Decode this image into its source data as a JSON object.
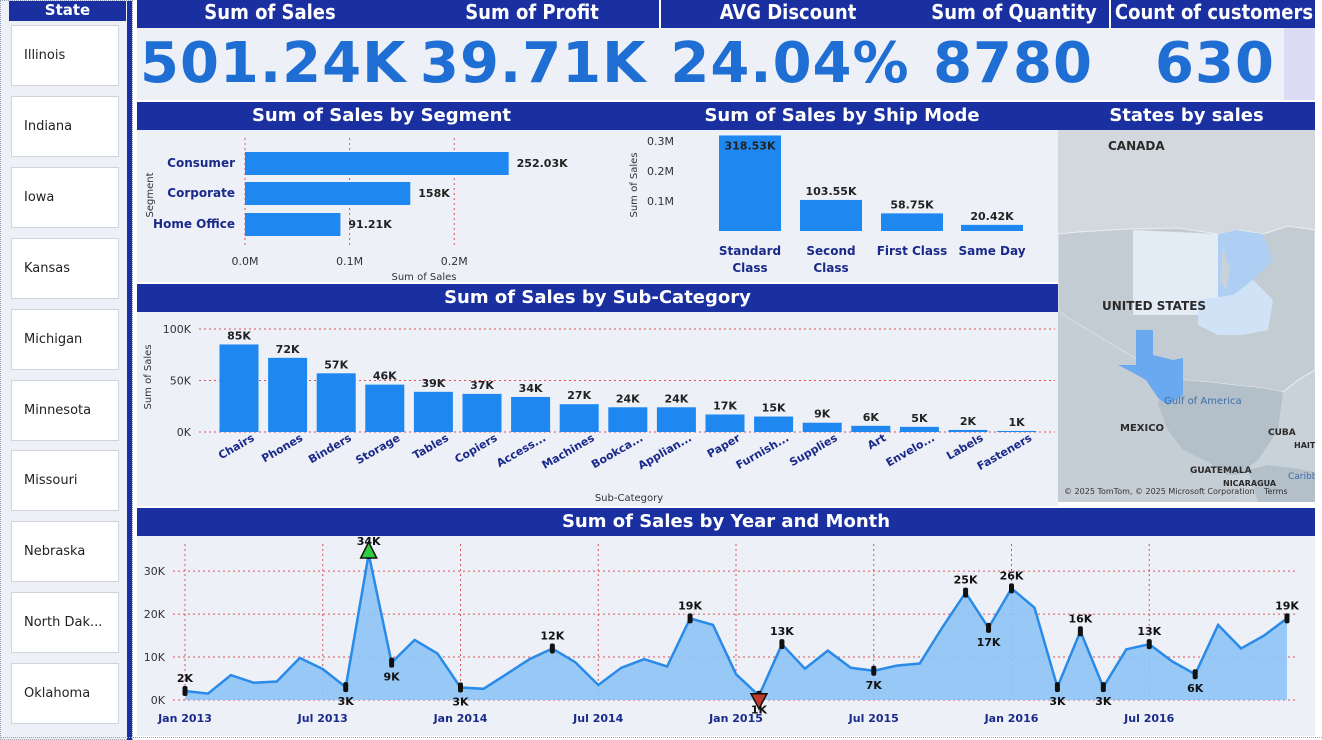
{
  "slicer": {
    "title": "State",
    "items": [
      "Illinois",
      "Indiana",
      "Iowa",
      "Kansas",
      "Michigan",
      "Minnesota",
      "Missouri",
      "Nebraska",
      "North Dak...",
      "Oklahoma"
    ]
  },
  "kpis": [
    {
      "label": "Sum of Sales",
      "value": "501.24K"
    },
    {
      "label": "Sum of Profit",
      "value": "39.71K"
    },
    {
      "label": "AVG Discount",
      "value": "24.04%"
    },
    {
      "label": "Sum of Quantity",
      "value": "8780"
    },
    {
      "label": "Count of customers",
      "value": "630"
    }
  ],
  "segment_chart": {
    "title": "Sum of Sales by Segment",
    "ylabel": "Segment",
    "xlabel": "Sum of Sales",
    "categories": [
      "Consumer",
      "Corporate",
      "Home Office"
    ],
    "values": [
      252.03,
      158,
      91.21
    ],
    "data_labels": [
      "252.03K",
      "158K",
      "91.21K"
    ],
    "ticks": [
      "0.0M",
      "0.1M",
      "0.2M"
    ],
    "tick_values": [
      0,
      100,
      200
    ],
    "xlim": [
      0,
      260
    ]
  },
  "shipmode_chart": {
    "title": "Sum of Sales by Ship Mode",
    "ylabel": "Sum of Sales",
    "categories": [
      [
        "Standard",
        "Class"
      ],
      [
        "Second",
        "Class"
      ],
      [
        "First Class"
      ],
      [
        "Same Day"
      ]
    ],
    "values": [
      318.53,
      103.55,
      58.75,
      20.42
    ],
    "data_labels": [
      "318.53K",
      "103.55K",
      "58.75K",
      "20.42K"
    ],
    "ticks": [
      "0.1M",
      "0.2M",
      "0.3M"
    ],
    "tick_values": [
      100,
      200,
      300
    ],
    "ylim": [
      0,
      330
    ]
  },
  "map": {
    "title": "States by sales",
    "labels": {
      "canada": "CANADA",
      "us": "UNITED STATES",
      "mexico": "MEXICO",
      "gulf": "Gulf of America",
      "cuba": "CUBA",
      "haiti": "HAITI",
      "guatemala": "GUATEMALA",
      "nicaragua": "NICARAGUA",
      "caribbean": "Caribb"
    },
    "attribution": "© 2025 TomTom, © 2025 Microsoft Corporation",
    "terms": "Terms"
  },
  "subcat_chart": {
    "title": "Sum of Sales by Sub-Category",
    "xlabel": "Sub-Category",
    "ylabel": "Sum of Sales",
    "categories": [
      "Chairs",
      "Phones",
      "Binders",
      "Storage",
      "Tables",
      "Copiers",
      "Access...",
      "Machines",
      "Bookca...",
      "Applian...",
      "Paper",
      "Furnish...",
      "Supplies",
      "Art",
      "Envelo...",
      "Labels",
      "Fasteners"
    ],
    "values": [
      85,
      72,
      57,
      46,
      39,
      37,
      34,
      27,
      24,
      24,
      17,
      15,
      9,
      6,
      5,
      2,
      1
    ],
    "data_labels": [
      "85K",
      "72K",
      "57K",
      "46K",
      "39K",
      "37K",
      "34K",
      "27K",
      "24K",
      "24K",
      "17K",
      "15K",
      "9K",
      "6K",
      "5K",
      "2K",
      "1K"
    ],
    "ticks": [
      "0K",
      "50K",
      "100K"
    ],
    "tick_values": [
      0,
      50,
      100
    ],
    "ylim": [
      0,
      100
    ]
  },
  "trend_chart": {
    "title": "Sum of Sales by Year and Month",
    "type": "area",
    "x_ticks": [
      "Jan 2013",
      "Jul 2013",
      "Jan 2014",
      "Jul 2014",
      "Jan 2015",
      "Jul 2015",
      "Jan 2016",
      "Jul 2016"
    ],
    "x_tick_index": [
      0,
      6,
      12,
      18,
      24,
      30,
      36,
      42
    ],
    "y_ticks": [
      "0K",
      "10K",
      "20K",
      "30K"
    ],
    "y_tick_values": [
      0,
      10,
      20,
      30
    ],
    "ylim": [
      0,
      34
    ],
    "values": [
      2.1,
      1.5,
      5.8,
      4.0,
      4.3,
      9.8,
      7.2,
      3.0,
      34.0,
      8.7,
      14.0,
      10.8,
      2.9,
      2.6,
      6.0,
      9.5,
      12.0,
      8.8,
      3.5,
      7.5,
      9.5,
      7.8,
      19.0,
      17.5,
      6.0,
      1.0,
      13.0,
      7.3,
      11.5,
      7.5,
      6.8,
      8.0,
      8.5,
      17.0,
      25.0,
      16.8,
      26.0,
      21.5,
      3.0,
      16.0,
      3.0,
      11.8,
      13.0,
      9.0,
      6.0,
      17.5,
      12.0,
      15.0,
      19.0
    ],
    "labels": [
      {
        "i": 0,
        "text": "2K"
      },
      {
        "i": 7,
        "text": "3K"
      },
      {
        "i": 8,
        "text": "34K"
      },
      {
        "i": 9,
        "text": "9K"
      },
      {
        "i": 12,
        "text": "3K"
      },
      {
        "i": 16,
        "text": "12K"
      },
      {
        "i": 22,
        "text": "19K"
      },
      {
        "i": 25,
        "text": "1K"
      },
      {
        "i": 26,
        "text": "13K"
      },
      {
        "i": 30,
        "text": "7K"
      },
      {
        "i": 34,
        "text": "25K"
      },
      {
        "i": 35,
        "text": "17K"
      },
      {
        "i": 36,
        "text": "26K"
      },
      {
        "i": 38,
        "text": "3K"
      },
      {
        "i": 39,
        "text": "16K"
      },
      {
        "i": 40,
        "text": "3K"
      },
      {
        "i": 42,
        "text": "13K"
      },
      {
        "i": 44,
        "text": "6K"
      },
      {
        "i": 48,
        "text": "19K"
      }
    ],
    "max_index": 8,
    "min_index": 25,
    "max_color": "#2ecc40",
    "min_color": "#c0392b"
  },
  "colors": {
    "header": "#1a2fa0",
    "bar": "#1e88f0",
    "area_fill": "#8ec4f5",
    "line": "#2a8ae8",
    "grid": "#d9535a",
    "kpi_value": "#1f6ed4",
    "cat_label": "#1a2a8a"
  }
}
